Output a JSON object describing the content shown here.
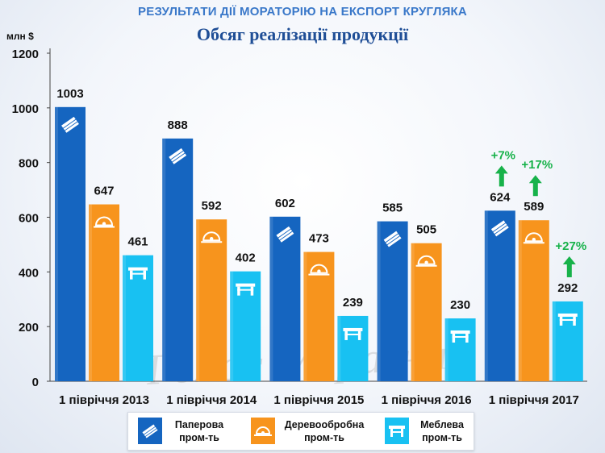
{
  "header": {
    "title": "РЕЗУЛЬТАТИ ДІЇ МОРАТОРІЮ НА ЕКСПОРТ КРУГЛЯКА",
    "subtitle": "Обсяг реалізації продукції",
    "unit": "млн $"
  },
  "watermark": "Голос України",
  "chart_data": {
    "type": "bar",
    "title": "Обсяг реалізації продукції",
    "ylabel": "млн $",
    "ylim": [
      0,
      1200
    ],
    "yticks": [
      0,
      200,
      400,
      600,
      800,
      1000,
      1200
    ],
    "grid": false,
    "legend_position": "bottom",
    "categories": [
      "1 півріччя 2013",
      "1 півріччя 2014",
      "1 півріччя 2015",
      "1 півріччя 2016",
      "1 півріччя 2017"
    ],
    "series": [
      {
        "name": "Паперова пром-ть",
        "values": [
          1003,
          888,
          602,
          585,
          624
        ],
        "color": "#1565c0",
        "icon": "book-icon"
      },
      {
        "name": "Деревообробна пром-ть",
        "values": [
          647,
          592,
          473,
          505,
          589
        ],
        "color": "#f7941d",
        "icon": "circular-saw-icon"
      },
      {
        "name": "Меблева пром-ть",
        "values": [
          461,
          402,
          239,
          230,
          292
        ],
        "color": "#18c1f2",
        "icon": "table-icon"
      }
    ],
    "annotations": [
      {
        "text": "+7%",
        "series": 0,
        "category": 4,
        "color": "#17b24a"
      },
      {
        "text": "+17%",
        "series": 1,
        "category": 4,
        "color": "#17b24a"
      },
      {
        "text": "+27%",
        "series": 2,
        "category": 4,
        "color": "#17b24a"
      }
    ]
  },
  "legend": {
    "items": [
      {
        "line1": "Паперова",
        "line2": "пром-ть"
      },
      {
        "line1": "Деревообробна",
        "line2": "пром-ть"
      },
      {
        "line1": "Меблева",
        "line2": "пром-ть"
      }
    ]
  }
}
